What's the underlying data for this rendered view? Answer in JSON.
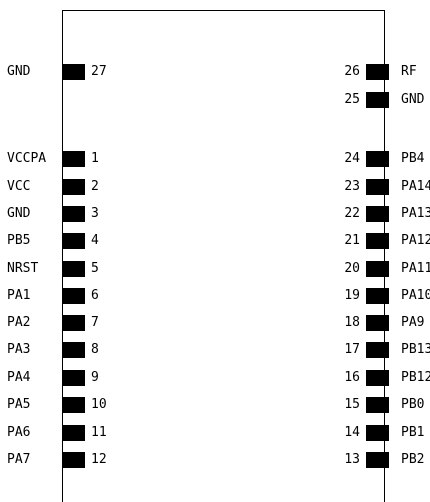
{
  "diagram": {
    "left_pins": [
      {
        "name": "GND",
        "number": "27"
      },
      {
        "name": "VCCPA",
        "number": "1"
      },
      {
        "name": "VCC",
        "number": "2"
      },
      {
        "name": "GND",
        "number": "3"
      },
      {
        "name": "PB5",
        "number": "4"
      },
      {
        "name": "NRST",
        "number": "5"
      },
      {
        "name": "PA1",
        "number": "6"
      },
      {
        "name": "PA2",
        "number": "7"
      },
      {
        "name": "PA3",
        "number": "8"
      },
      {
        "name": "PA4",
        "number": "9"
      },
      {
        "name": "PA5",
        "number": "10"
      },
      {
        "name": "PA6",
        "number": "11"
      },
      {
        "name": "PA7",
        "number": "12"
      }
    ],
    "right_pins": [
      {
        "name": "RF",
        "number": "26"
      },
      {
        "name": "GND",
        "number": "25"
      },
      {
        "name": "PB4",
        "number": "24"
      },
      {
        "name": "PA14",
        "number": "23"
      },
      {
        "name": "PA13",
        "number": "22"
      },
      {
        "name": "PA12",
        "number": "21"
      },
      {
        "name": "PA11",
        "number": "20"
      },
      {
        "name": "PA10",
        "number": "19"
      },
      {
        "name": "PA9",
        "number": "18"
      },
      {
        "name": "PB13",
        "number": "17"
      },
      {
        "name": "PB12",
        "number": "16"
      },
      {
        "name": "PB0",
        "number": "15"
      },
      {
        "name": "PB1",
        "number": "14"
      },
      {
        "name": "PB2",
        "number": "13"
      }
    ]
  }
}
